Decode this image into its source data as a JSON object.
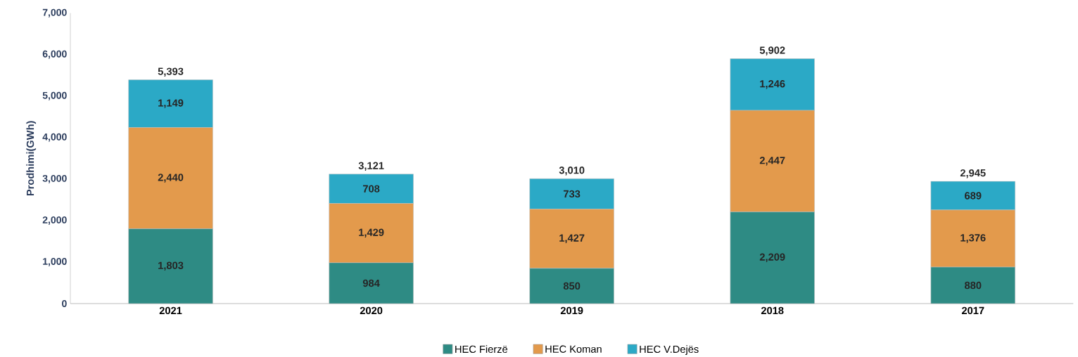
{
  "chart_data": {
    "type": "bar",
    "stacked": true,
    "ylabel": "Prodhimi(GWh)",
    "categories": [
      "2021",
      "2020",
      "2019",
      "2018",
      "2017"
    ],
    "series": [
      {
        "name": "HEC Fierzë",
        "color": "#2e8b84",
        "values": [
          1803,
          984,
          850,
          2209,
          880
        ],
        "value_labels": [
          "1,803",
          "984",
          "850",
          "2,209",
          "880"
        ]
      },
      {
        "name": "HEC Koman",
        "color": "#e39a4c",
        "values": [
          2440,
          1429,
          1427,
          2447,
          1376
        ],
        "value_labels": [
          "2,440",
          "1,429",
          "1,427",
          "2,447",
          "1,376"
        ]
      },
      {
        "name": "HEC V.Dejës",
        "color": "#2ba9c6",
        "values": [
          1149,
          708,
          733,
          1246,
          689
        ],
        "value_labels": [
          "1,149",
          "708",
          "733",
          "1,246",
          "689"
        ]
      }
    ],
    "totals": [
      "5,393",
      "3,121",
      "3,010",
      "5,902",
      "2,945"
    ],
    "ylim": [
      0,
      7000
    ],
    "yticks": [
      {
        "value": 0,
        "label": "0"
      },
      {
        "value": 1000,
        "label": "1,000"
      },
      {
        "value": 2000,
        "label": "2,000"
      },
      {
        "value": 3000,
        "label": "3,000"
      },
      {
        "value": 4000,
        "label": "4,000"
      },
      {
        "value": 5000,
        "label": "5,000"
      },
      {
        "value": 6000,
        "label": "6,000"
      },
      {
        "value": 7000,
        "label": "7,000"
      }
    ],
    "grid": false,
    "legend": "bottom"
  }
}
